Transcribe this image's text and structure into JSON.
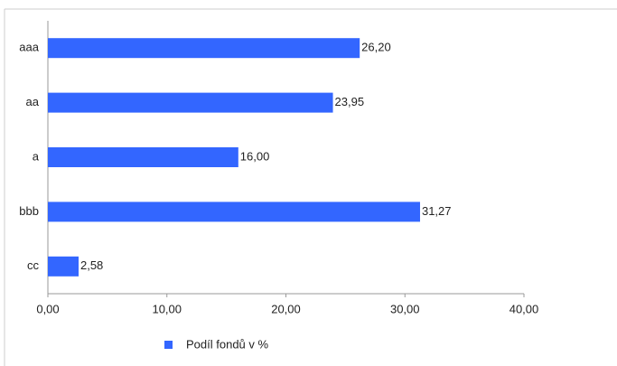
{
  "chart_data": {
    "type": "bar",
    "orientation": "horizontal",
    "categories": [
      "aaa",
      "aa",
      "a",
      "bbb",
      "cc"
    ],
    "series": [
      {
        "name": "Podíl fondů v %",
        "color": "#3366ff",
        "values": [
          26.2,
          23.95,
          16.0,
          31.27,
          2.58
        ],
        "value_labels": [
          "26,20",
          "23,95",
          "16,00",
          "31,27",
          "2,58"
        ]
      }
    ],
    "xlim": [
      0,
      40
    ],
    "xticks": [
      {
        "value": 0,
        "label": "0,00"
      },
      {
        "value": 10,
        "label": "10,00"
      },
      {
        "value": 20,
        "label": "20,00"
      },
      {
        "value": 30,
        "label": "30,00"
      },
      {
        "value": 40,
        "label": "40,00"
      }
    ],
    "legend": "bottom"
  }
}
